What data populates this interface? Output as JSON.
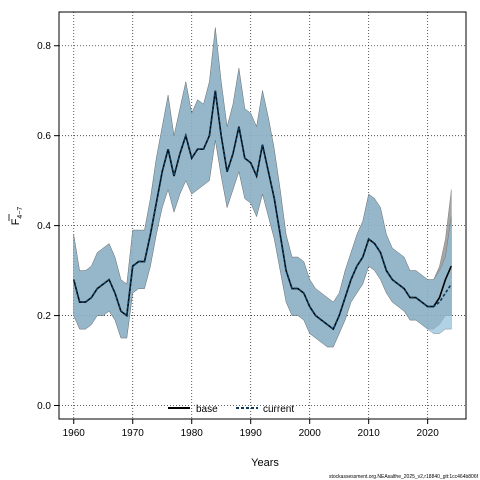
{
  "chart_data": {
    "type": "line",
    "title": "",
    "xlabel": "Years",
    "ylabel_main": "F",
    "ylabel_sub": "4−7",
    "xlim": [
      1957.5,
      2026.5
    ],
    "ylim": [
      -0.03,
      0.875
    ],
    "xticks": [
      1960,
      1970,
      1980,
      1990,
      2000,
      2010,
      2020
    ],
    "yticks": [
      "0.0",
      "0.2",
      "0.4",
      "0.6",
      "0.8"
    ],
    "grid": true,
    "legend_position": "bottom-center",
    "x": [
      1960,
      1961,
      1962,
      1963,
      1964,
      1965,
      1966,
      1967,
      1968,
      1969,
      1970,
      1971,
      1972,
      1973,
      1974,
      1975,
      1976,
      1977,
      1978,
      1979,
      1980,
      1981,
      1982,
      1983,
      1984,
      1985,
      1986,
      1987,
      1988,
      1989,
      1990,
      1991,
      1992,
      1993,
      1994,
      1995,
      1996,
      1997,
      1998,
      1999,
      2000,
      2001,
      2002,
      2003,
      2004,
      2005,
      2006,
      2007,
      2008,
      2009,
      2010,
      2011,
      2012,
      2013,
      2014,
      2015,
      2016,
      2017,
      2018,
      2019,
      2020,
      2021,
      2022,
      2023,
      2024
    ],
    "series": [
      {
        "name": "base",
        "color": "#000000",
        "dash": "solid",
        "band_color": "#7f7f7f",
        "values": [
          0.28,
          0.23,
          0.23,
          0.24,
          0.26,
          0.27,
          0.28,
          0.25,
          0.21,
          0.2,
          0.31,
          0.32,
          0.32,
          0.38,
          0.45,
          0.52,
          0.57,
          0.51,
          0.56,
          0.6,
          0.55,
          0.57,
          0.57,
          0.6,
          0.7,
          0.6,
          0.52,
          0.56,
          0.62,
          0.55,
          0.54,
          0.51,
          0.58,
          0.52,
          0.46,
          0.38,
          0.3,
          0.26,
          0.26,
          0.25,
          0.22,
          0.2,
          0.19,
          0.18,
          0.17,
          0.2,
          0.24,
          0.28,
          0.31,
          0.33,
          0.37,
          0.36,
          0.34,
          0.3,
          0.28,
          0.27,
          0.26,
          0.24,
          0.24,
          0.23,
          0.22,
          0.22,
          0.24,
          0.28,
          0.31
        ],
        "lower": [
          0.2,
          0.17,
          0.17,
          0.18,
          0.2,
          0.2,
          0.21,
          0.19,
          0.15,
          0.15,
          0.25,
          0.26,
          0.26,
          0.31,
          0.38,
          0.44,
          0.48,
          0.43,
          0.47,
          0.5,
          0.47,
          0.48,
          0.49,
          0.5,
          0.59,
          0.51,
          0.44,
          0.48,
          0.52,
          0.46,
          0.45,
          0.42,
          0.47,
          0.42,
          0.37,
          0.3,
          0.23,
          0.2,
          0.2,
          0.19,
          0.16,
          0.15,
          0.14,
          0.13,
          0.13,
          0.16,
          0.19,
          0.23,
          0.25,
          0.27,
          0.31,
          0.3,
          0.28,
          0.25,
          0.23,
          0.22,
          0.21,
          0.19,
          0.19,
          0.18,
          0.17,
          0.17,
          0.18,
          0.2,
          0.2
        ],
        "upper": [
          0.38,
          0.3,
          0.3,
          0.31,
          0.34,
          0.35,
          0.36,
          0.33,
          0.28,
          0.27,
          0.39,
          0.39,
          0.39,
          0.46,
          0.55,
          0.62,
          0.69,
          0.6,
          0.66,
          0.72,
          0.65,
          0.68,
          0.67,
          0.72,
          0.84,
          0.72,
          0.62,
          0.67,
          0.75,
          0.66,
          0.65,
          0.62,
          0.7,
          0.64,
          0.57,
          0.48,
          0.38,
          0.33,
          0.33,
          0.32,
          0.28,
          0.26,
          0.25,
          0.24,
          0.23,
          0.25,
          0.3,
          0.34,
          0.38,
          0.41,
          0.47,
          0.46,
          0.44,
          0.38,
          0.35,
          0.34,
          0.33,
          0.3,
          0.3,
          0.29,
          0.28,
          0.28,
          0.31,
          0.37,
          0.48
        ]
      },
      {
        "name": "current",
        "color": "#0b3a5c",
        "dash": "dashed",
        "band_color": "#8fbfd9",
        "values": [
          0.28,
          0.23,
          0.23,
          0.24,
          0.26,
          0.27,
          0.28,
          0.25,
          0.21,
          0.2,
          0.31,
          0.32,
          0.32,
          0.38,
          0.45,
          0.52,
          0.57,
          0.51,
          0.56,
          0.6,
          0.55,
          0.57,
          0.57,
          0.6,
          0.7,
          0.6,
          0.52,
          0.56,
          0.62,
          0.55,
          0.54,
          0.51,
          0.58,
          0.52,
          0.46,
          0.38,
          0.3,
          0.26,
          0.26,
          0.25,
          0.22,
          0.2,
          0.19,
          0.18,
          0.17,
          0.2,
          0.24,
          0.28,
          0.31,
          0.33,
          0.37,
          0.36,
          0.34,
          0.3,
          0.28,
          0.27,
          0.26,
          0.24,
          0.24,
          0.23,
          0.22,
          0.22,
          0.23,
          0.25,
          0.27
        ],
        "lower": [
          0.2,
          0.17,
          0.17,
          0.18,
          0.2,
          0.2,
          0.21,
          0.19,
          0.15,
          0.15,
          0.25,
          0.26,
          0.26,
          0.31,
          0.38,
          0.44,
          0.48,
          0.43,
          0.47,
          0.5,
          0.47,
          0.48,
          0.49,
          0.5,
          0.59,
          0.51,
          0.44,
          0.48,
          0.52,
          0.46,
          0.45,
          0.42,
          0.47,
          0.42,
          0.37,
          0.3,
          0.23,
          0.2,
          0.2,
          0.19,
          0.16,
          0.15,
          0.14,
          0.13,
          0.13,
          0.16,
          0.19,
          0.23,
          0.25,
          0.27,
          0.31,
          0.3,
          0.28,
          0.25,
          0.23,
          0.22,
          0.21,
          0.19,
          0.19,
          0.18,
          0.17,
          0.16,
          0.16,
          0.17,
          0.17
        ],
        "upper": [
          0.38,
          0.3,
          0.3,
          0.31,
          0.34,
          0.35,
          0.36,
          0.33,
          0.28,
          0.27,
          0.39,
          0.39,
          0.39,
          0.46,
          0.55,
          0.62,
          0.69,
          0.6,
          0.66,
          0.72,
          0.65,
          0.68,
          0.67,
          0.72,
          0.84,
          0.72,
          0.62,
          0.67,
          0.75,
          0.66,
          0.65,
          0.62,
          0.7,
          0.64,
          0.57,
          0.48,
          0.38,
          0.33,
          0.33,
          0.32,
          0.28,
          0.26,
          0.25,
          0.24,
          0.23,
          0.25,
          0.3,
          0.34,
          0.38,
          0.41,
          0.47,
          0.46,
          0.44,
          0.38,
          0.35,
          0.34,
          0.33,
          0.3,
          0.3,
          0.29,
          0.28,
          0.28,
          0.3,
          0.33,
          0.42
        ]
      }
    ]
  },
  "legend": {
    "base_label": "base",
    "current_label": "current"
  },
  "source": "stockassessment.org.NEAsalthe_2025_v2,r18840_git:1cc464b806f"
}
